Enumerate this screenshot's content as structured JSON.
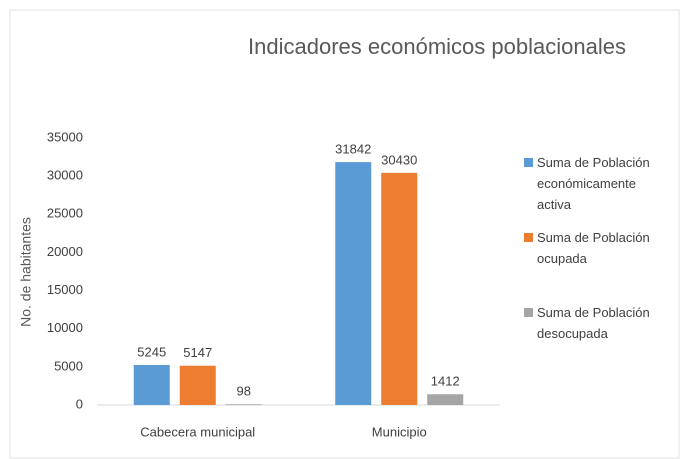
{
  "chart_data": {
    "type": "bar",
    "title": "Indicadores económicos poblacionales",
    "y_label": "No. de habitantes",
    "categories": [
      "Cabecera municipal",
      "Municipio"
    ],
    "series": [
      {
        "name": "Suma de Población económicamente activa",
        "color": "#5b9bd5",
        "values": [
          5245,
          31842
        ]
      },
      {
        "name": "Suma de Población ocupada",
        "color": "#ed7d31",
        "values": [
          5147,
          30430
        ]
      },
      {
        "name": "Suma de Población desocupada",
        "color": "#a5a5a5",
        "values": [
          98,
          1412
        ]
      }
    ],
    "ylim": [
      0,
      35000
    ],
    "yticks": [
      0,
      5000,
      10000,
      15000,
      20000,
      25000,
      30000,
      35000
    ],
    "grid": false,
    "legend": "right"
  }
}
